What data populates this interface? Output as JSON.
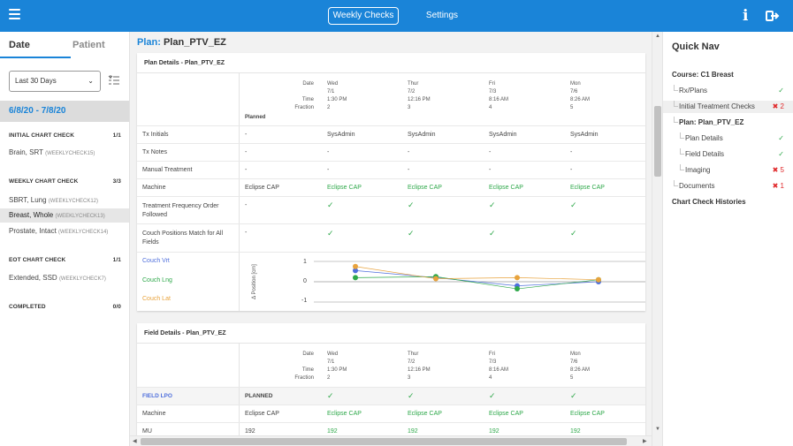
{
  "topbar": {
    "tabs": [
      {
        "label": "Weekly Checks"
      },
      {
        "label": "Settings"
      }
    ]
  },
  "sidebar": {
    "tabs": [
      "Date",
      "Patient"
    ],
    "range_value": "Last 30 Days",
    "date_range": "6/8/20 - 7/8/20",
    "groups": [
      {
        "title": "INITIAL CHART CHECK",
        "count": "1/1",
        "cases": [
          {
            "name": "Brain, SRT",
            "id": "(WEEKLYCHECK15)"
          }
        ]
      },
      {
        "title": "WEEKLY CHART CHECK",
        "count": "3/3",
        "cases": [
          {
            "name": "SBRT, Lung",
            "id": "(WEEKLYCHECK12)"
          },
          {
            "name": "Breast, Whole",
            "id": "(WEEKLYCHECK13)"
          },
          {
            "name": "Prostate, Intact",
            "id": "(WEEKLYCHECK14)"
          }
        ]
      },
      {
        "title": "EOT CHART CHECK",
        "count": "1/1",
        "cases": [
          {
            "name": "Extended, SSD",
            "id": "(WEEKLYCHECK7)"
          }
        ]
      },
      {
        "title": "COMPLETED",
        "count": "0/0",
        "cases": []
      }
    ]
  },
  "main": {
    "plan_label": "Plan:",
    "plan_name": "Plan_PTV_EZ",
    "plan_details": {
      "title": "Plan Details - Plan_PTV_EZ",
      "header_labels": [
        "Date",
        "Time",
        "Fraction"
      ],
      "planned_label": "Planned",
      "columns": [
        {
          "day": "Wed",
          "date": "7/1",
          "time": "1:30 PM",
          "fraction": "2"
        },
        {
          "day": "Thur",
          "date": "7/2",
          "time": "12:16 PM",
          "fraction": "3"
        },
        {
          "day": "Fri",
          "date": "7/3",
          "time": "8:16 AM",
          "fraction": "4"
        },
        {
          "day": "Mon",
          "date": "7/6",
          "time": "8:26 AM",
          "fraction": "5"
        }
      ],
      "rows": [
        {
          "label": "Tx Initials",
          "planned": "-",
          "values": [
            "SysAdmin",
            "SysAdmin",
            "SysAdmin",
            "SysAdmin"
          ]
        },
        {
          "label": "Tx Notes",
          "planned": "-",
          "values": [
            "-",
            "-",
            "-",
            "-"
          ]
        },
        {
          "label": "Manual Treatment",
          "planned": "-",
          "values": [
            "-",
            "-",
            "-",
            "-"
          ]
        },
        {
          "label": "Machine",
          "planned": "Eclipse CAP",
          "values": [
            "Eclipse CAP",
            "Eclipse CAP",
            "Eclipse CAP",
            "Eclipse CAP"
          ]
        },
        {
          "label": "Treatment Frequency Order Followed",
          "planned": "-",
          "values": [
            "✓",
            "✓",
            "✓",
            "✓"
          ]
        },
        {
          "label": "Couch Positions Match for All Fields",
          "planned": "-",
          "values": [
            "✓",
            "✓",
            "✓",
            "✓"
          ]
        }
      ],
      "couch": {
        "labels": [
          "Couch Vrt",
          "Couch Lng",
          "Couch Lat"
        ],
        "axis_label": "Δ Position [cm]",
        "ticks": [
          "1",
          "0",
          "-1"
        ]
      }
    },
    "field_details": {
      "title": "Field Details - Plan_PTV_EZ",
      "field_label": "FIELD LPO",
      "field_planned": "PLANNED",
      "field_checks": [
        "✓",
        "✓",
        "✓",
        "✓"
      ],
      "rows": [
        {
          "label": "Machine",
          "planned": "Eclipse CAP",
          "values": [
            "Eclipse CAP",
            "Eclipse CAP",
            "Eclipse CAP",
            "Eclipse CAP"
          ]
        },
        {
          "label": "MU",
          "planned": "192",
          "values": [
            "192",
            "192",
            "192",
            "192"
          ]
        }
      ]
    }
  },
  "chart_data": {
    "type": "scatter",
    "ylabel": "Δ Position [cm]",
    "ylim": [
      -1,
      1
    ],
    "categories": [
      "7/1",
      "7/2",
      "7/3",
      "7/6"
    ],
    "series": [
      {
        "name": "Couch Vrt",
        "color": "#4f6fdc",
        "values": [
          0.55,
          0.2,
          -0.2,
          0.0
        ]
      },
      {
        "name": "Couch Lng",
        "color": "#2ea84a",
        "values": [
          0.2,
          0.25,
          -0.35,
          0.1
        ]
      },
      {
        "name": "Couch Lat",
        "color": "#e8a33d",
        "values": [
          0.75,
          0.15,
          0.2,
          0.1
        ]
      }
    ]
  },
  "quicknav": {
    "title": "Quick Nav",
    "items": [
      {
        "label": "Course: C1 Breast",
        "status": ""
      },
      {
        "label": "Rx/Plans",
        "status": "✓"
      },
      {
        "label": "Initial Treatment Checks",
        "status": "✖ 2"
      },
      {
        "label": "Plan: Plan_PTV_EZ",
        "status": ""
      },
      {
        "label": "Plan Details",
        "status": "✓"
      },
      {
        "label": "Field Details",
        "status": "✓"
      },
      {
        "label": "Imaging",
        "status": "✖ 5"
      },
      {
        "label": "Documents",
        "status": "✖ 1"
      },
      {
        "label": "Chart Check Histories",
        "status": ""
      }
    ]
  }
}
